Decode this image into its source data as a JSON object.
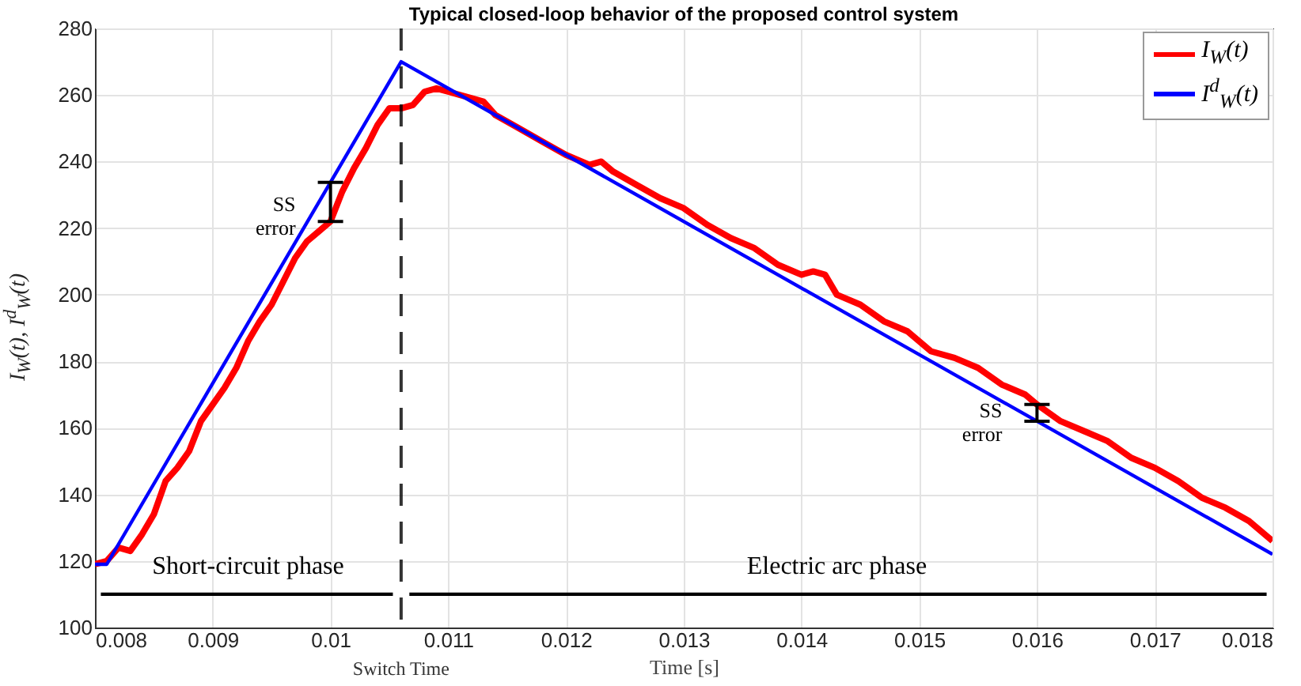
{
  "chart_data": {
    "type": "line",
    "title": "Typical closed-loop behavior of the proposed control system",
    "xlabel": "Time [s]",
    "ylabel": "I$_{W}$(t), I$^{d}$$_{W}$(t)",
    "xlim": [
      0.008,
      0.018
    ],
    "ylim": [
      100,
      280
    ],
    "xticks": [
      0.008,
      0.009,
      0.01,
      0.011,
      0.012,
      0.013,
      0.014,
      0.015,
      0.016,
      0.017,
      0.018
    ],
    "yticks": [
      100,
      120,
      140,
      160,
      180,
      200,
      220,
      240,
      260,
      280
    ],
    "grid": true,
    "legend": "top right",
    "series": [
      {
        "name": "I$_{W}$(t)",
        "color": "#ff0000",
        "x": [
          0.008,
          0.0081,
          0.0082,
          0.0083,
          0.0084,
          0.0085,
          0.0086,
          0.0087,
          0.0088,
          0.0089,
          0.009,
          0.0091,
          0.0092,
          0.0093,
          0.0094,
          0.0095,
          0.0096,
          0.0097,
          0.0098,
          0.0099,
          0.01,
          0.0101,
          0.0102,
          0.0103,
          0.0104,
          0.0105,
          0.0106,
          0.0107,
          0.0108,
          0.0109,
          0.011,
          0.0112,
          0.0113,
          0.0114,
          0.0116,
          0.0118,
          0.012,
          0.0122,
          0.0123,
          0.0124,
          0.0126,
          0.0128,
          0.013,
          0.0132,
          0.0134,
          0.0136,
          0.0138,
          0.014,
          0.0141,
          0.0142,
          0.0143,
          0.0145,
          0.0147,
          0.0149,
          0.0151,
          0.0153,
          0.0155,
          0.0157,
          0.0159,
          0.016,
          0.0162,
          0.0164,
          0.0166,
          0.0168,
          0.017,
          0.0172,
          0.0174,
          0.0176,
          0.0178,
          0.018
        ],
        "values": [
          119,
          120,
          124,
          123,
          128,
          134,
          144,
          148,
          153,
          162,
          167,
          172,
          178,
          186,
          192,
          197,
          204,
          211,
          216,
          219,
          222,
          231,
          238,
          244,
          251,
          256,
          256,
          257,
          261,
          262,
          261,
          259,
          258,
          254,
          250,
          246,
          242,
          239,
          240,
          237,
          233,
          229,
          226,
          221,
          217,
          214,
          209,
          206,
          207,
          206,
          200,
          197,
          192,
          189,
          183,
          181,
          178,
          173,
          170,
          167,
          162,
          159,
          156,
          151,
          148,
          144,
          139,
          136,
          132,
          126
        ]
      },
      {
        "name": "I$^{d}$$_{W}$(t)",
        "color": "#0000ff",
        "x": [
          0.008,
          0.0081,
          0.0106,
          0.018
        ],
        "values": [
          119,
          119,
          270,
          122
        ]
      },
      {
        "type": "line",
        "color": "#000000",
        "x": [
          0.00805,
          0.01053
        ],
        "values": [
          110,
          110
        ]
      },
      {
        "type": "line",
        "color": "#000000",
        "x": [
          0.01067,
          0.01795
        ],
        "values": [
          110,
          110
        ]
      }
    ],
    "ref_lines": [
      {
        "axis": "x",
        "value": 0.0106,
        "label": "Switch Time",
        "color": "#000000",
        "line_style": "dashed"
      }
    ],
    "annotations": [
      {
        "text": "SS error",
        "x": 0.01,
        "y": 227
      },
      {
        "text": "SS error",
        "x": 0.016,
        "y": 165
      },
      "Short-circuit phase",
      "Electric arc phase"
    ]
  }
}
